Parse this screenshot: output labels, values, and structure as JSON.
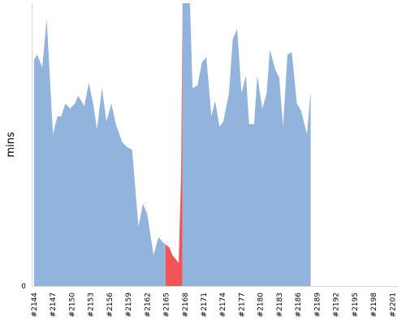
{
  "chart_data": {
    "type": "area",
    "ylabel": "mins",
    "y_ticks": [
      "0"
    ],
    "ylim": [
      0,
      110
    ],
    "x_ticks": [
      "#2144",
      "#2147",
      "#2150",
      "#2153",
      "#2156",
      "#2159",
      "#2162",
      "#2165",
      "#2168",
      "#2171",
      "#2174",
      "#2177",
      "#2180",
      "#2183",
      "#2186",
      "#2189",
      "#2192",
      "#2195",
      "#2198",
      "#2201"
    ],
    "x_start": 2144,
    "x_end": 2202,
    "values": [
      {
        "x": 2144,
        "y": 88
      },
      {
        "x": 2144.5,
        "y": 90
      },
      {
        "x": 2145.3,
        "y": 85
      },
      {
        "x": 2146,
        "y": 104
      },
      {
        "x": 2147,
        "y": 59
      },
      {
        "x": 2147.7,
        "y": 66
      },
      {
        "x": 2148.3,
        "y": 66
      },
      {
        "x": 2149,
        "y": 71
      },
      {
        "x": 2149.7,
        "y": 69
      },
      {
        "x": 2150.5,
        "y": 71
      },
      {
        "x": 2151,
        "y": 74
      },
      {
        "x": 2152,
        "y": 70
      },
      {
        "x": 2152.7,
        "y": 79
      },
      {
        "x": 2153.4,
        "y": 71
      },
      {
        "x": 2154,
        "y": 61
      },
      {
        "x": 2154.8,
        "y": 77
      },
      {
        "x": 2155.5,
        "y": 64
      },
      {
        "x": 2156.3,
        "y": 71
      },
      {
        "x": 2157,
        "y": 63
      },
      {
        "x": 2158,
        "y": 56
      },
      {
        "x": 2158.8,
        "y": 54
      },
      {
        "x": 2159.6,
        "y": 53
      },
      {
        "x": 2160.2,
        "y": 35
      },
      {
        "x": 2160.6,
        "y": 23
      },
      {
        "x": 2161.3,
        "y": 32
      },
      {
        "x": 2162,
        "y": 28
      },
      {
        "x": 2163,
        "y": 12
      },
      {
        "x": 2163.8,
        "y": 19
      },
      {
        "x": 2164.5,
        "y": 17
      },
      {
        "x": 2165.5,
        "y": 15
      },
      {
        "x": 2166,
        "y": 12
      },
      {
        "x": 2167,
        "y": 9
      },
      {
        "x": 2167.4,
        "y": 45
      },
      {
        "x": 2167.6,
        "y": 110
      },
      {
        "x": 2168.8,
        "y": 110
      },
      {
        "x": 2169.2,
        "y": 77
      },
      {
        "x": 2170,
        "y": 78
      },
      {
        "x": 2170.7,
        "y": 87
      },
      {
        "x": 2171.4,
        "y": 89
      },
      {
        "x": 2172.2,
        "y": 66
      },
      {
        "x": 2172.8,
        "y": 72
      },
      {
        "x": 2173.5,
        "y": 62
      },
      {
        "x": 2174.1,
        "y": 64
      },
      {
        "x": 2175,
        "y": 75
      },
      {
        "x": 2175.6,
        "y": 96
      },
      {
        "x": 2176.3,
        "y": 100
      },
      {
        "x": 2177,
        "y": 75
      },
      {
        "x": 2177.7,
        "y": 82
      },
      {
        "x": 2178.2,
        "y": 63
      },
      {
        "x": 2179,
        "y": 63
      },
      {
        "x": 2179.5,
        "y": 82
      },
      {
        "x": 2180.3,
        "y": 69
      },
      {
        "x": 2181,
        "y": 75
      },
      {
        "x": 2181.5,
        "y": 92
      },
      {
        "x": 2182.4,
        "y": 84
      },
      {
        "x": 2183,
        "y": 81
      },
      {
        "x": 2183.6,
        "y": 62
      },
      {
        "x": 2184.3,
        "y": 90
      },
      {
        "x": 2185,
        "y": 91
      },
      {
        "x": 2185.8,
        "y": 71
      },
      {
        "x": 2186.5,
        "y": 68
      },
      {
        "x": 2187.4,
        "y": 59
      },
      {
        "x": 2188,
        "y": 76
      }
    ],
    "highlight_range": [
      2164.9,
      2167.6
    ]
  }
}
